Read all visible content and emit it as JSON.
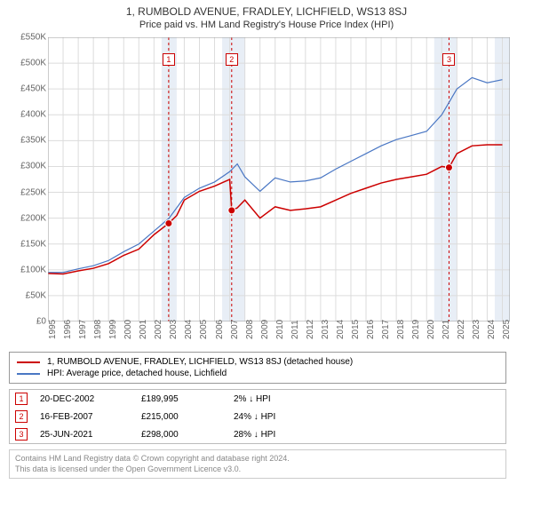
{
  "title": "1, RUMBOLD AVENUE, FRADLEY, LICHFIELD, WS13 8SJ",
  "subtitle": "Price paid vs. HM Land Registry's House Price Index (HPI)",
  "chart": {
    "type": "line",
    "background_color": "#ffffff",
    "grid_color": "#dcdcdc",
    "shade_color": "#e8eef6",
    "x_years": [
      1995,
      1996,
      1997,
      1998,
      1999,
      2000,
      2001,
      2002,
      2003,
      2004,
      2005,
      2006,
      2007,
      2008,
      2009,
      2010,
      2011,
      2012,
      2013,
      2014,
      2015,
      2016,
      2017,
      2018,
      2019,
      2020,
      2021,
      2022,
      2023,
      2024,
      2025
    ],
    "xlim": [
      1995,
      2025.5
    ],
    "ylim": [
      0,
      550
    ],
    "ytick_step": 50,
    "y_prefix": "£",
    "y_suffix": "K",
    "shaded_ranges": [
      [
        2002.5,
        2003.5
      ],
      [
        2006.5,
        2008.0
      ],
      [
        2020.5,
        2022.0
      ],
      [
        2024.5,
        2025.5
      ]
    ],
    "series": [
      {
        "name": "1, RUMBOLD AVENUE, FRADLEY, LICHFIELD, WS13 8SJ (detached house)",
        "color": "#cc0000",
        "line_width": 1.5,
        "points": [
          [
            1995,
            93
          ],
          [
            1996,
            92
          ],
          [
            1997,
            98
          ],
          [
            1998,
            103
          ],
          [
            1999,
            112
          ],
          [
            2000,
            128
          ],
          [
            2001,
            140
          ],
          [
            2002,
            168
          ],
          [
            2002.97,
            190
          ],
          [
            2003.5,
            205
          ],
          [
            2004,
            235
          ],
          [
            2005,
            252
          ],
          [
            2006,
            262
          ],
          [
            2007,
            275
          ],
          [
            2007.13,
            215
          ],
          [
            2007.5,
            220
          ],
          [
            2008,
            235
          ],
          [
            2009,
            200
          ],
          [
            2010,
            222
          ],
          [
            2011,
            215
          ],
          [
            2012,
            218
          ],
          [
            2013,
            222
          ],
          [
            2014,
            235
          ],
          [
            2015,
            248
          ],
          [
            2016,
            258
          ],
          [
            2017,
            268
          ],
          [
            2018,
            275
          ],
          [
            2019,
            280
          ],
          [
            2020,
            285
          ],
          [
            2021,
            300
          ],
          [
            2021.48,
            298
          ],
          [
            2022,
            325
          ],
          [
            2023,
            340
          ],
          [
            2024,
            342
          ],
          [
            2025,
            342
          ]
        ]
      },
      {
        "name": "HPI: Average price, detached house, Lichfield",
        "color": "#4a77c4",
        "line_width": 1.2,
        "points": [
          [
            1995,
            95
          ],
          [
            1996,
            95
          ],
          [
            1997,
            102
          ],
          [
            1998,
            108
          ],
          [
            1999,
            118
          ],
          [
            2000,
            135
          ],
          [
            2001,
            150
          ],
          [
            2002,
            175
          ],
          [
            2003,
            200
          ],
          [
            2004,
            240
          ],
          [
            2005,
            258
          ],
          [
            2006,
            270
          ],
          [
            2007,
            290
          ],
          [
            2007.5,
            305
          ],
          [
            2008,
            280
          ],
          [
            2009,
            252
          ],
          [
            2010,
            278
          ],
          [
            2011,
            270
          ],
          [
            2012,
            272
          ],
          [
            2013,
            278
          ],
          [
            2014,
            295
          ],
          [
            2015,
            310
          ],
          [
            2016,
            325
          ],
          [
            2017,
            340
          ],
          [
            2018,
            352
          ],
          [
            2019,
            360
          ],
          [
            2020,
            368
          ],
          [
            2021,
            400
          ],
          [
            2022,
            450
          ],
          [
            2023,
            472
          ],
          [
            2024,
            462
          ],
          [
            2025,
            468
          ]
        ]
      }
    ],
    "sale_markers": [
      {
        "num": "1",
        "year": 2002.97,
        "value": 190
      },
      {
        "num": "2",
        "year": 2007.13,
        "value": 215
      },
      {
        "num": "3",
        "year": 2021.48,
        "value": 298
      }
    ]
  },
  "legend": [
    {
      "color": "#cc0000",
      "label": "1, RUMBOLD AVENUE, FRADLEY, LICHFIELD, WS13 8SJ (detached house)"
    },
    {
      "color": "#4a77c4",
      "label": "HPI: Average price, detached house, Lichfield"
    }
  ],
  "sales": [
    {
      "num": "1",
      "date": "20-DEC-2002",
      "price": "£189,995",
      "diff": "2% ↓ HPI"
    },
    {
      "num": "2",
      "date": "16-FEB-2007",
      "price": "£215,000",
      "diff": "24% ↓ HPI"
    },
    {
      "num": "3",
      "date": "25-JUN-2021",
      "price": "£298,000",
      "diff": "28% ↓ HPI"
    }
  ],
  "footer_line1": "Contains HM Land Registry data © Crown copyright and database right 2024.",
  "footer_line2": "This data is licensed under the Open Government Licence v3.0."
}
